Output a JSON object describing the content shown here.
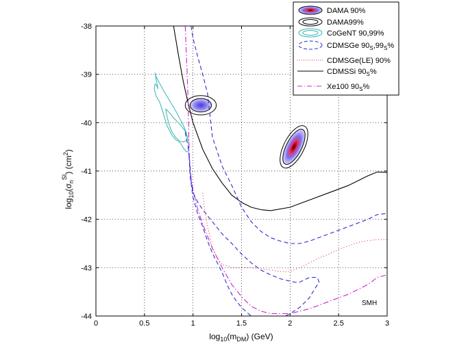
{
  "chart_data": {
    "type": "line",
    "xlabel": {
      "base": "log",
      "sub1": "10",
      "mid": "(m",
      "sub2": "DM",
      "end": ") (GeV)"
    },
    "ylabel": {
      "base": "log",
      "sub1": "10",
      "mid": "(σ",
      "sub2": "n",
      "sup1": "SI",
      "mid2": ") (cm",
      "sup2": "2",
      "end": ")"
    },
    "xlim": [
      0,
      3
    ],
    "ylim": [
      -44,
      -38
    ],
    "xticks": [
      0,
      0.5,
      1,
      1.5,
      2,
      2.5,
      3
    ],
    "xtick_labels": [
      "0",
      "0.5",
      "1",
      "1.5",
      "2",
      "2.5",
      "3"
    ],
    "yticks": [
      -44,
      -43,
      -42,
      -41,
      -40,
      -39,
      -38
    ],
    "ytick_labels": [
      "-44",
      "-43",
      "-42",
      "-41",
      "-40",
      "-39",
      "-38"
    ],
    "grid": true,
    "legend_position": "top-right",
    "annotation": "SMH",
    "colors": {
      "dama_outline": "#000000",
      "dama_core": "#c8002a",
      "dama_fill": "#6a5ff0",
      "cogent": "#33b4b4",
      "cdmsge": "#2a2ad0",
      "cdmsge_le": "#e0284a",
      "cdmssi": "#000000",
      "xe100": "#d020d0"
    },
    "legend": [
      {
        "label": "DAMA 90%",
        "key": "dama90"
      },
      {
        "label": "DAMA99%",
        "key": "dama99"
      },
      {
        "label": "CoGeNT 90,99%",
        "key": "cogent"
      },
      {
        "label": "CDMSGe 90",
        "sub": "S",
        "mid": ",99",
        "sub2": "S",
        "end": "%",
        "key": "cdmsge"
      },
      {
        "label": "CDMSGe(LE) 90%",
        "key": "cdmsge_le"
      },
      {
        "label": "CDMSSi 90",
        "sub": "S",
        "end": "%",
        "key": "cdmssi"
      },
      {
        "label": "Xe100 90",
        "sub": "S",
        "end": "%",
        "key": "xe100"
      }
    ],
    "series": [
      {
        "key": "cdmssi",
        "style": "solid",
        "x": [
          0.8,
          0.85,
          0.9,
          0.95,
          1.0,
          1.1,
          1.2,
          1.3,
          1.4,
          1.5,
          1.6,
          1.7,
          1.8,
          2.0,
          2.2,
          2.4,
          2.6,
          2.8,
          2.9,
          3.0
        ],
        "y": [
          -38.0,
          -38.6,
          -39.15,
          -39.6,
          -40.0,
          -40.55,
          -40.95,
          -41.25,
          -41.5,
          -41.65,
          -41.75,
          -41.8,
          -41.82,
          -41.75,
          -41.6,
          -41.45,
          -41.3,
          -41.1,
          -41.02,
          -41.03
        ]
      },
      {
        "key": "xe100",
        "style": "dashdot",
        "x": [
          0.92,
          0.94,
          0.95,
          0.955,
          0.96,
          0.97,
          1.0,
          1.05,
          1.1,
          1.2,
          1.3,
          1.4,
          1.5,
          1.6,
          1.7,
          1.8,
          2.0,
          2.2,
          2.4,
          2.6,
          2.8,
          2.9,
          3.0
        ],
        "y": [
          -38.0,
          -39.0,
          -39.6,
          -40.1,
          -40.6,
          -41.0,
          -41.4,
          -41.8,
          -42.1,
          -42.6,
          -43.0,
          -43.35,
          -43.6,
          -43.8,
          -43.9,
          -43.95,
          -43.95,
          -43.85,
          -43.7,
          -43.55,
          -43.35,
          -43.2,
          -43.15
        ]
      },
      {
        "key": "cdmsge",
        "style": "dashed",
        "x": [
          0.98,
          1.0,
          1.05,
          1.1,
          1.15,
          1.2,
          1.3,
          1.4,
          1.5,
          1.6,
          1.7,
          1.8,
          1.9,
          2.0,
          2.1,
          2.2,
          2.4,
          2.6,
          2.8,
          2.9,
          3.0
        ],
        "y": [
          -38.0,
          -38.25,
          -38.65,
          -39.0,
          -39.4,
          -40.3,
          -40.9,
          -41.3,
          -41.75,
          -42.05,
          -42.25,
          -42.38,
          -42.45,
          -42.5,
          -42.5,
          -42.45,
          -42.3,
          -42.15,
          -42.0,
          -41.9,
          -41.88
        ]
      },
      {
        "key": "cdmsge",
        "style": "dashed",
        "x": [
          0.92,
          0.95,
          0.97,
          0.98,
          1.0,
          1.05,
          1.1,
          1.2,
          1.3,
          1.4,
          1.5,
          1.6,
          1.7,
          1.8,
          1.9,
          2.0,
          2.05,
          2.08,
          2.1,
          2.15,
          2.2,
          2.28,
          2.3,
          2.25,
          2.2,
          2.1,
          2.0,
          1.95,
          1.9,
          1.85,
          1.8,
          1.75,
          1.7,
          1.65,
          1.6,
          1.55,
          1.5,
          1.45,
          1.4,
          1.35,
          1.3,
          1.25,
          1.2,
          1.15,
          1.1,
          1.05,
          1.0,
          0.97,
          0.96
        ],
        "y": [
          -40.2,
          -40.5,
          -40.9,
          -41.2,
          -41.45,
          -41.65,
          -41.8,
          -42.05,
          -42.3,
          -42.5,
          -42.72,
          -42.9,
          -43.05,
          -43.15,
          -43.23,
          -43.28,
          -43.3,
          -43.3,
          -43.3,
          -43.25,
          -43.2,
          -43.2,
          -43.3,
          -43.45,
          -43.62,
          -43.82,
          -43.95,
          -44.0,
          -44.05,
          -44.08,
          -44.1,
          -44.1,
          -44.08,
          -44.05,
          -44.0,
          -43.92,
          -43.82,
          -43.7,
          -43.55,
          -43.35,
          -43.1,
          -42.9,
          -42.7,
          -42.45,
          -42.15,
          -41.9,
          -41.55,
          -41.1,
          -40.7
        ]
      },
      {
        "key": "cdmsge_le",
        "style": "dotted",
        "x": [
          1.1,
          1.12,
          1.15,
          1.18,
          1.2,
          1.25,
          1.3,
          1.4,
          1.5,
          1.6,
          1.7,
          1.8,
          1.9,
          2.0,
          2.1,
          2.2,
          2.3,
          2.4,
          2.5,
          2.6,
          2.7,
          2.8,
          2.9,
          3.0
        ],
        "y": [
          -41.45,
          -41.8,
          -42.15,
          -42.4,
          -42.6,
          -42.8,
          -42.93,
          -43.0,
          -43.0,
          -43.0,
          -43.02,
          -43.05,
          -43.08,
          -43.08,
          -43.0,
          -42.9,
          -42.8,
          -42.72,
          -42.62,
          -42.55,
          -42.48,
          -42.44,
          -42.42,
          -42.42
        ]
      }
    ],
    "contours": {
      "dama_low": {
        "cx": 1.08,
        "cy": -39.64,
        "rx99": 0.16,
        "ry99": 0.2,
        "rx90": 0.11,
        "ry90": 0.14
      },
      "dama_high": {
        "cx": 2.04,
        "cy": -40.5,
        "rx99": 0.48,
        "ry99": 0.1,
        "rx90": 0.4,
        "ry90": 0.075,
        "angle_deg": 117
      },
      "cogent_99": {
        "x": [
          0.64,
          0.62,
          0.61,
          0.62,
          0.66,
          0.7,
          0.76,
          0.82,
          0.86,
          0.9,
          0.93,
          0.95,
          0.96,
          0.95,
          0.93,
          0.9,
          0.88,
          0.86,
          0.82,
          0.78,
          0.73,
          0.7,
          0.67,
          0.65,
          0.62,
          0.6,
          0.61,
          0.63,
          0.64
        ],
        "y": [
          -39.3,
          -39.1,
          -38.97,
          -39.05,
          -39.2,
          -39.35,
          -39.55,
          -39.75,
          -39.9,
          -40.05,
          -40.2,
          -40.35,
          -40.5,
          -40.6,
          -40.6,
          -40.52,
          -40.45,
          -40.4,
          -40.35,
          -40.25,
          -40.05,
          -39.85,
          -39.65,
          -39.55,
          -39.45,
          -39.3,
          -39.2,
          -39.25,
          -39.3
        ]
      },
      "cogent_90": {
        "x": [
          0.72,
          0.76,
          0.8,
          0.85,
          0.88,
          0.91,
          0.93,
          0.94,
          0.93,
          0.9,
          0.86,
          0.82,
          0.78,
          0.75,
          0.73,
          0.72
        ],
        "y": [
          -39.72,
          -39.8,
          -39.9,
          -40.0,
          -40.07,
          -40.15,
          -40.22,
          -40.3,
          -40.37,
          -40.4,
          -40.38,
          -40.3,
          -40.18,
          -40.02,
          -39.85,
          -39.72
        ]
      }
    }
  }
}
